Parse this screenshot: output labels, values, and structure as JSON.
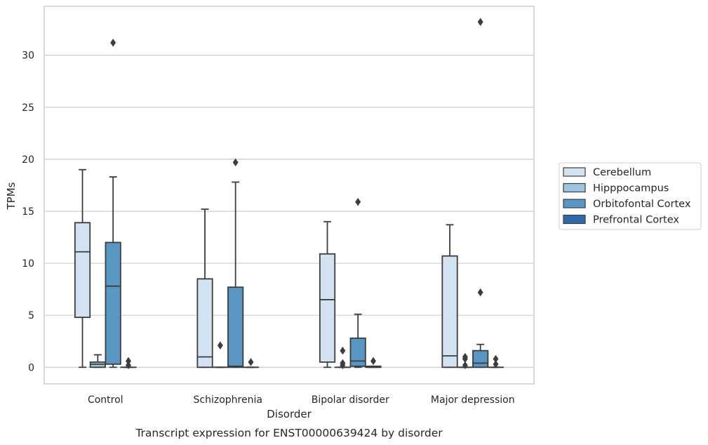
{
  "chart_data": {
    "type": "box",
    "title": "",
    "caption": "Transcript expression for ENST00000639424 by disorder",
    "xlabel": "Disorder",
    "ylabel": "TPMs",
    "ylim": [
      -1.6,
      34.7
    ],
    "yticks": [
      0,
      5,
      10,
      15,
      20,
      25,
      30
    ],
    "grid": true,
    "legend_position": "right",
    "categories": [
      "Control",
      "Schizophrenia",
      "Bipolar disorder",
      "Major depression"
    ],
    "series": [
      {
        "name": "Cerebellum",
        "color": "#d3e2f1",
        "boxes": [
          {
            "whislo": 0.0,
            "q1": 4.8,
            "med": 11.1,
            "q3": 13.9,
            "whishi": 19.0,
            "fliers": []
          },
          {
            "whislo": 0.0,
            "q1": 0.0,
            "med": 1.0,
            "q3": 8.5,
            "whishi": 15.2,
            "fliers": []
          },
          {
            "whislo": 0.0,
            "q1": 0.5,
            "med": 6.5,
            "q3": 10.9,
            "whishi": 14.0,
            "fliers": []
          },
          {
            "whislo": 0.0,
            "q1": 0.0,
            "med": 1.1,
            "q3": 10.7,
            "whishi": 13.7,
            "fliers": []
          }
        ]
      },
      {
        "name": "Hipppocampus",
        "color": "#9ec4de",
        "boxes": [
          {
            "whislo": 0.0,
            "q1": 0.0,
            "med": 0.3,
            "q3": 0.5,
            "whishi": 1.2,
            "fliers": []
          },
          {
            "whislo": 0.0,
            "q1": 0.0,
            "med": 0.0,
            "q3": 0.0,
            "whishi": 0.0,
            "fliers": [
              2.1
            ]
          },
          {
            "whislo": 0.0,
            "q1": 0.0,
            "med": 0.0,
            "q3": 0.0,
            "whishi": 0.0,
            "fliers": [
              0.2,
              0.4,
              1.6
            ]
          },
          {
            "whislo": 0.0,
            "q1": 0.0,
            "med": 0.0,
            "q3": 0.0,
            "whishi": 0.0,
            "fliers": [
              0.2,
              0.8,
              1.0
            ]
          }
        ]
      },
      {
        "name": "Orbitofontal Cortex",
        "color": "#5a96c3",
        "boxes": [
          {
            "whislo": 0.0,
            "q1": 0.3,
            "med": 7.8,
            "q3": 12.0,
            "whishi": 18.3,
            "fliers": [
              31.2
            ]
          },
          {
            "whislo": 0.0,
            "q1": 0.0,
            "med": 0.1,
            "q3": 7.7,
            "whishi": 17.8,
            "fliers": [
              19.7
            ]
          },
          {
            "whislo": 0.0,
            "q1": 0.1,
            "med": 0.6,
            "q3": 2.8,
            "whishi": 5.1,
            "fliers": [
              15.9
            ]
          },
          {
            "whislo": 0.0,
            "q1": 0.0,
            "med": 0.4,
            "q3": 1.6,
            "whishi": 2.2,
            "fliers": [
              7.2,
              33.2
            ]
          }
        ]
      },
      {
        "name": "Prefrontal Cortex",
        "color": "#2e6aa8",
        "boxes": [
          {
            "whislo": 0.0,
            "q1": 0.0,
            "med": 0.0,
            "q3": 0.0,
            "whishi": 0.0,
            "fliers": [
              0.2,
              0.6
            ]
          },
          {
            "whislo": 0.0,
            "q1": 0.0,
            "med": 0.0,
            "q3": 0.0,
            "whishi": 0.0,
            "fliers": [
              0.5
            ]
          },
          {
            "whislo": 0.0,
            "q1": 0.0,
            "med": 0.0,
            "q3": 0.1,
            "whishi": 0.1,
            "fliers": [
              0.6
            ]
          },
          {
            "whislo": 0.0,
            "q1": 0.0,
            "med": 0.0,
            "q3": 0.0,
            "whishi": 0.0,
            "fliers": [
              0.3,
              0.8
            ]
          }
        ]
      }
    ]
  }
}
